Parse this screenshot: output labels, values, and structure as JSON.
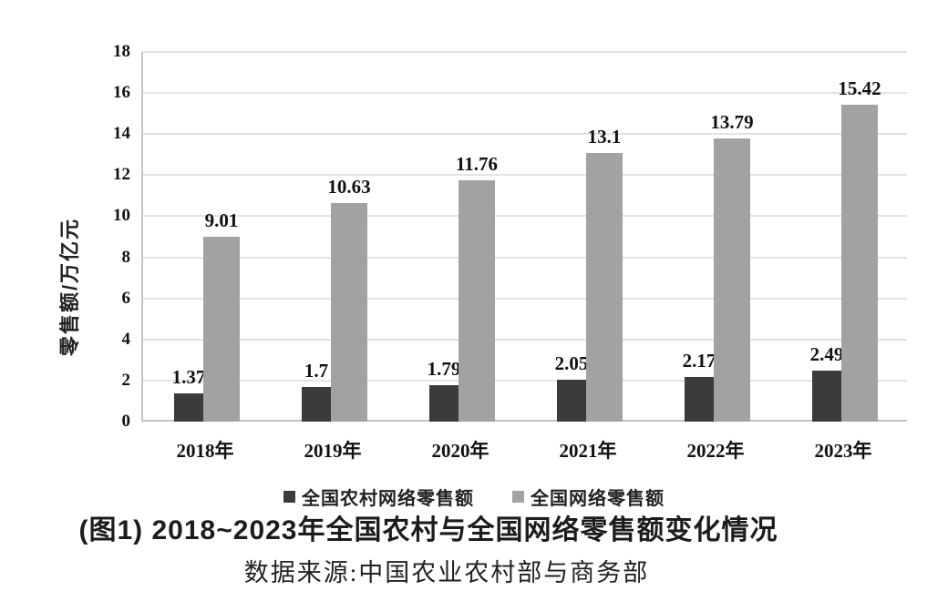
{
  "figure": {
    "caption": "(图1) 2018~2023年全国农村与全国网络零售额变化情况",
    "source": "数据来源:中国农业农村部与商务部"
  },
  "chart_data": {
    "type": "bar",
    "title": "(图1) 2018~2023年全国农村与全国网络零售额变化情况",
    "xlabel": "",
    "ylabel": "零售额/万亿元",
    "categories": [
      "2018年",
      "2019年",
      "2020年",
      "2021年",
      "2022年",
      "2023年"
    ],
    "series": [
      {
        "name": "全国农村网络零售额",
        "color": "#3b3b3b",
        "values": [
          1.37,
          1.7,
          1.79,
          2.05,
          2.17,
          2.49
        ]
      },
      {
        "name": "全国网络零售额",
        "color": "#a2a2a2",
        "values": [
          9.01,
          10.63,
          11.76,
          13.1,
          13.79,
          15.42
        ]
      }
    ],
    "ylim": [
      0,
      18
    ],
    "yticks": [
      0,
      2,
      4,
      6,
      8,
      10,
      12,
      14,
      16,
      18
    ],
    "grid": true,
    "value_labels": true,
    "legend_position": "bottom",
    "colors": {
      "gridline": "#e2e2e2",
      "axis": "#c4c4c4",
      "text": "#141414"
    }
  }
}
